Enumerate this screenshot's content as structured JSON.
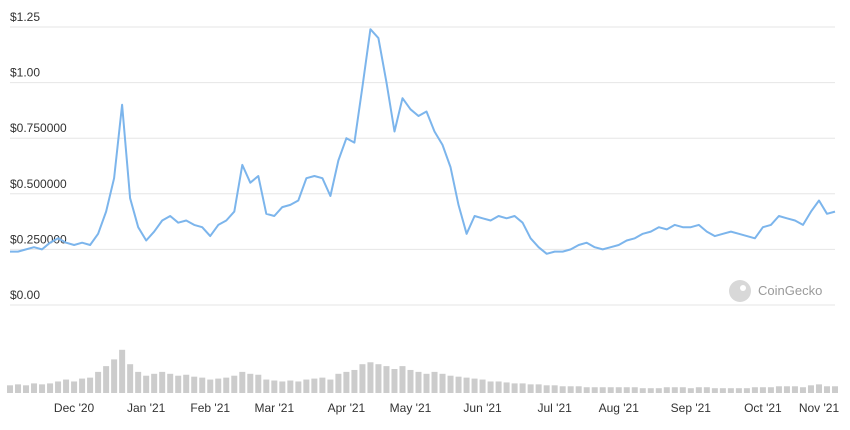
{
  "chart_data": {
    "type": "line",
    "watermark": "CoinGecko",
    "categories": [
      null,
      null,
      null,
      null,
      null,
      null,
      null,
      null,
      "Dec '20",
      null,
      null,
      null,
      null,
      null,
      null,
      null,
      null,
      "Jan '21",
      null,
      null,
      null,
      null,
      null,
      null,
      null,
      "Feb '21",
      null,
      null,
      null,
      null,
      null,
      null,
      null,
      "Mar '21",
      null,
      null,
      null,
      null,
      null,
      null,
      null,
      null,
      "Apr '21",
      null,
      null,
      null,
      null,
      null,
      null,
      null,
      "May '21",
      null,
      null,
      null,
      null,
      null,
      null,
      null,
      null,
      "Jun '21",
      null,
      null,
      null,
      null,
      null,
      null,
      null,
      null,
      "Jul '21",
      null,
      null,
      null,
      null,
      null,
      null,
      null,
      "Aug '21",
      null,
      null,
      null,
      null,
      null,
      null,
      null,
      null,
      "Sep '21",
      null,
      null,
      null,
      null,
      null,
      null,
      null,
      null,
      "Oct '21",
      null,
      null,
      null,
      null,
      null,
      null,
      "Nov '21",
      null,
      null
    ],
    "series": [
      {
        "color": "#7cb5ec",
        "values": [
          0.24,
          0.24,
          0.25,
          0.26,
          0.25,
          0.28,
          0.3,
          0.28,
          0.27,
          0.28,
          0.27,
          0.32,
          0.42,
          0.57,
          0.9,
          0.48,
          0.35,
          0.29,
          0.33,
          0.38,
          0.4,
          0.37,
          0.38,
          0.36,
          0.35,
          0.31,
          0.36,
          0.38,
          0.42,
          0.63,
          0.55,
          0.58,
          0.41,
          0.4,
          0.44,
          0.45,
          0.47,
          0.57,
          0.58,
          0.57,
          0.49,
          0.65,
          0.75,
          0.73,
          0.98,
          1.24,
          1.2,
          1.0,
          0.78,
          0.93,
          0.88,
          0.85,
          0.87,
          0.78,
          0.72,
          0.62,
          0.45,
          0.32,
          0.4,
          0.39,
          0.38,
          0.4,
          0.39,
          0.4,
          0.37,
          0.3,
          0.26,
          0.23,
          0.24,
          0.24,
          0.25,
          0.27,
          0.28,
          0.26,
          0.25,
          0.26,
          0.27,
          0.29,
          0.3,
          0.32,
          0.33,
          0.35,
          0.34,
          0.36,
          0.35,
          0.35,
          0.36,
          0.33,
          0.31,
          0.32,
          0.33,
          0.32,
          0.31,
          0.3,
          0.35,
          0.36,
          0.4,
          0.39,
          0.38,
          0.36,
          0.42,
          0.47,
          0.41,
          0.42
        ]
      },
      {
        "color": "#cccccc",
        "axis": "y2",
        "values": [
          8,
          9,
          8,
          10,
          9,
          10,
          12,
          14,
          12,
          15,
          16,
          22,
          28,
          35,
          45,
          30,
          22,
          18,
          20,
          22,
          20,
          18,
          19,
          17,
          16,
          14,
          15,
          16,
          18,
          22,
          20,
          19,
          14,
          13,
          12,
          13,
          12,
          14,
          15,
          16,
          14,
          20,
          22,
          24,
          30,
          32,
          30,
          28,
          25,
          28,
          24,
          22,
          20,
          22,
          20,
          18,
          17,
          16,
          15,
          14,
          12,
          12,
          11,
          10,
          10,
          9,
          9,
          8,
          8,
          7,
          7,
          7,
          6,
          6,
          6,
          6,
          6,
          6,
          6,
          5,
          5,
          5,
          6,
          6,
          6,
          5,
          6,
          6,
          5,
          5,
          5,
          5,
          5,
          6,
          6,
          6,
          7,
          7,
          7,
          6,
          8,
          9,
          7,
          7
        ]
      }
    ],
    "ylim": [
      0,
      1.25
    ],
    "yticks": [
      {
        "value": 0,
        "label": "$0.00"
      },
      {
        "value": 0.25,
        "label": "$0.250000"
      },
      {
        "value": 0.5,
        "label": "$0.500000"
      },
      {
        "value": 0.75,
        "label": "$0.750000"
      },
      {
        "value": 1,
        "label": "$1.00"
      },
      {
        "value": 1.25,
        "label": "$1.25"
      }
    ],
    "y2lim": [
      0,
      50
    ],
    "grid": true
  }
}
